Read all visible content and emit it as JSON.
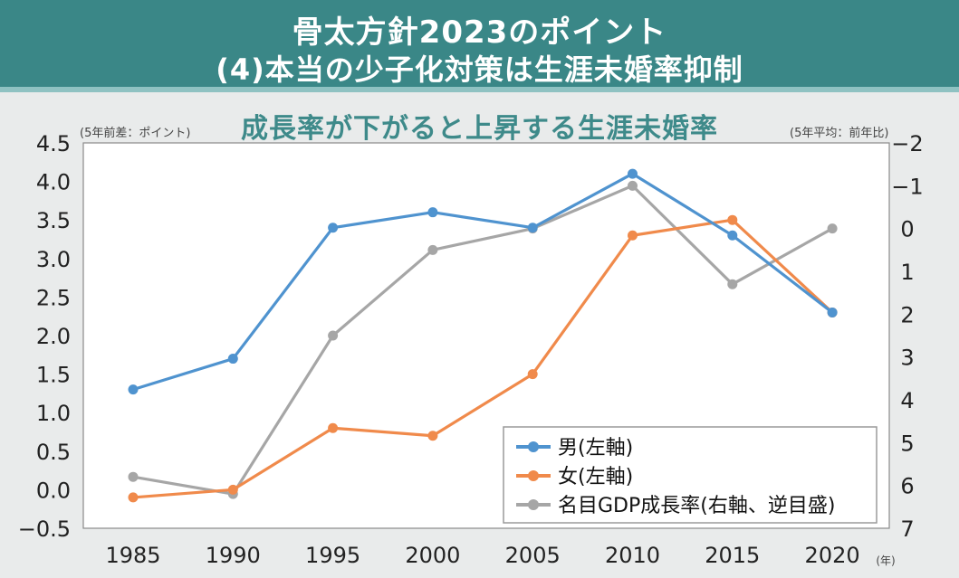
{
  "header": {
    "title_line1": "骨太方針2023のポイント",
    "title_line2": "(4)本当の少子化対策は生涯未婚率抑制"
  },
  "chart_data": {
    "type": "line",
    "title": "成長率が下がると上昇する生涯未婚率",
    "left_axis_unit": "(5年前差：ポイント)",
    "right_axis_unit": "(5年平均：前年比)",
    "x_unit": "(年)",
    "x": [
      1985,
      1990,
      1995,
      2000,
      2005,
      2010,
      2015,
      2020
    ],
    "ylim_left": [
      -0.5,
      4.5
    ],
    "ylim_right": [
      7,
      -2
    ],
    "left_ticks": [
      "4.5",
      "4.0",
      "3.5",
      "3.0",
      "2.5",
      "2.0",
      "1.5",
      "1.0",
      "0.5",
      "0.0",
      "−0.5"
    ],
    "left_tick_values": [
      4.5,
      4.0,
      3.5,
      3.0,
      2.5,
      2.0,
      1.5,
      1.0,
      0.5,
      0.0,
      -0.5
    ],
    "right_ticks": [
      "−2",
      "−1",
      "0",
      "1",
      "2",
      "3",
      "4",
      "5",
      "6",
      "7"
    ],
    "right_tick_values": [
      -2,
      -1,
      0,
      1,
      2,
      3,
      4,
      5,
      6,
      7
    ],
    "grid": false,
    "legend_position": "bottom-right",
    "series": [
      {
        "name": "男(左軸)",
        "axis": "left",
        "color": "#4f93cf",
        "values": [
          1.3,
          1.7,
          3.4,
          3.6,
          3.4,
          4.1,
          3.3,
          2.3
        ]
      },
      {
        "name": "女(左軸)",
        "axis": "left",
        "color": "#f08a4b",
        "values": [
          -0.1,
          0.0,
          0.8,
          0.7,
          1.5,
          3.3,
          3.5,
          2.3
        ]
      },
      {
        "name": "名目GDP成長率(右軸、逆目盛)",
        "axis": "right",
        "color": "#a6a6a6",
        "values": [
          5.8,
          6.2,
          2.5,
          0.5,
          0.0,
          -1.0,
          1.3,
          0.0
        ]
      }
    ]
  }
}
